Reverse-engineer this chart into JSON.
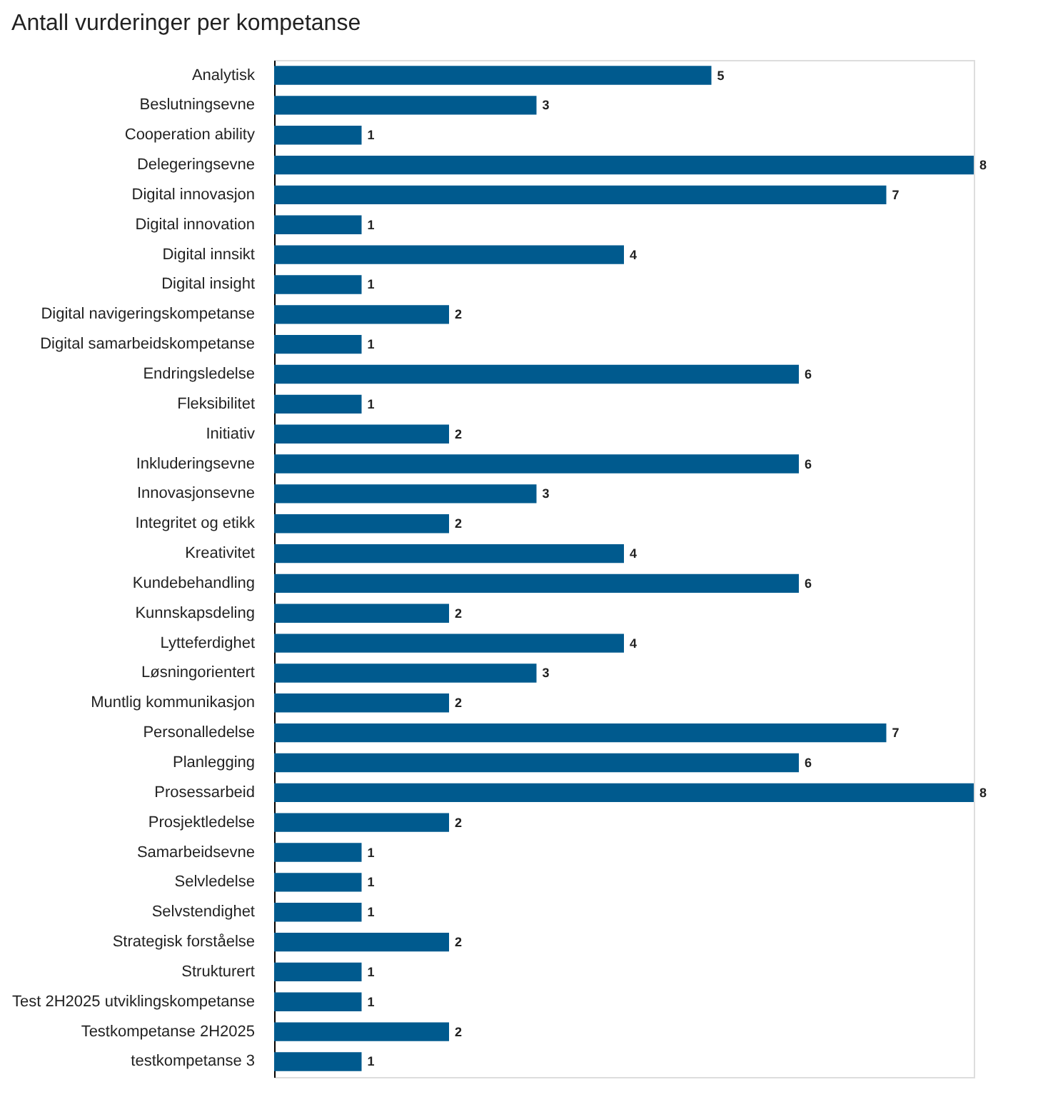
{
  "chart_data": {
    "type": "bar",
    "orientation": "horizontal",
    "title": "Antall vurderinger per kompetanse",
    "color": "#005a8e",
    "data_labels": true,
    "categories": [
      "Analytisk",
      "Beslutningsevne",
      "Cooperation ability",
      "Delegeringsevne",
      "Digital innovasjon",
      "Digital innovation",
      "Digital innsikt",
      "Digital insight",
      "Digital navigeringskompetanse",
      "Digital samarbeidskompetanse",
      "Endringsledelse",
      "Fleksibilitet",
      "Initiativ",
      "Inkluderingsevne",
      "Innovasjonsevne",
      "Integritet og etikk",
      "Kreativitet",
      "Kundebehandling",
      "Kunnskapsdeling",
      "Lytteferdighet",
      "Løsningorientert",
      "Muntlig kommunikasjon",
      "Personalledelse",
      "Planlegging",
      "Prosessarbeid",
      "Prosjektledelse",
      "Samarbeidsevne",
      "Selvledelse",
      "Selvstendighet",
      "Strategisk forståelse",
      "Strukturert",
      "Test 2H2025 utviklingskompetanse",
      "Testkompetanse 2H2025",
      "testkompetanse 3"
    ],
    "values": [
      5,
      3,
      1,
      8,
      7,
      1,
      4,
      1,
      2,
      1,
      6,
      1,
      2,
      6,
      3,
      2,
      4,
      6,
      2,
      4,
      3,
      2,
      7,
      6,
      8,
      2,
      1,
      1,
      1,
      2,
      1,
      1,
      2,
      1
    ]
  }
}
